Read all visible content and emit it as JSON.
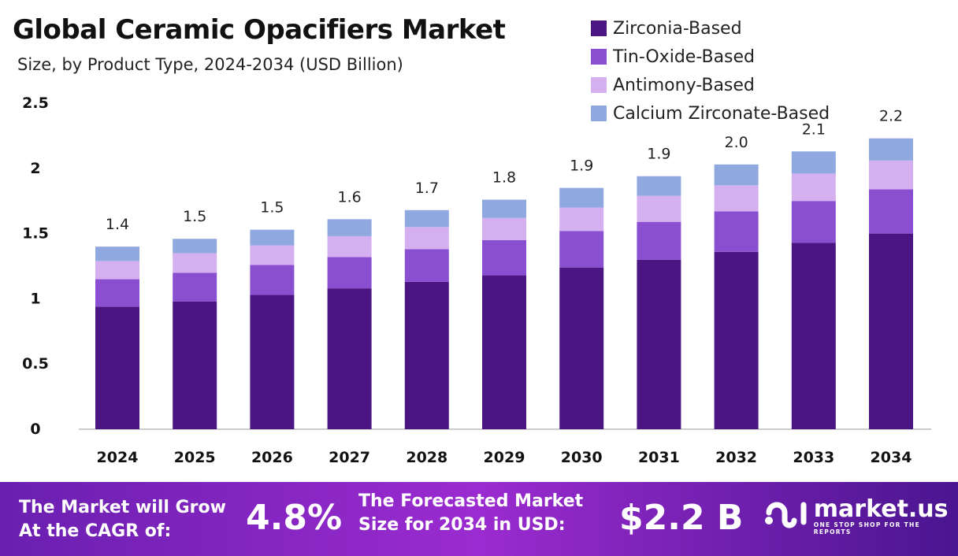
{
  "chart_data": {
    "type": "bar",
    "stacked": true,
    "title": "Global Ceramic Opacifiers Market",
    "subtitle": "Size, by Product Type, 2024-2034 (USD Billion)",
    "categories": [
      "2024",
      "2025",
      "2026",
      "2027",
      "2028",
      "2029",
      "2030",
      "2031",
      "2032",
      "2033",
      "2034"
    ],
    "series": [
      {
        "name": "Zirconia-Based",
        "color": "#4b1584",
        "values": [
          0.94,
          0.98,
          1.03,
          1.08,
          1.13,
          1.18,
          1.24,
          1.3,
          1.36,
          1.43,
          1.5
        ]
      },
      {
        "name": "Tin-Oxide-Based",
        "color": "#8a4fd0",
        "values": [
          0.21,
          0.22,
          0.23,
          0.24,
          0.25,
          0.27,
          0.28,
          0.29,
          0.31,
          0.32,
          0.34
        ]
      },
      {
        "name": "Antimony-Based",
        "color": "#d5b0f0",
        "values": [
          0.14,
          0.15,
          0.15,
          0.16,
          0.17,
          0.17,
          0.18,
          0.2,
          0.2,
          0.21,
          0.22
        ]
      },
      {
        "name": "Calcium Zirconate-Based",
        "color": "#8fa8e0",
        "values": [
          0.11,
          0.11,
          0.12,
          0.13,
          0.13,
          0.14,
          0.15,
          0.15,
          0.16,
          0.17,
          0.17
        ]
      }
    ],
    "total_labels": [
      "1.4",
      "1.5",
      "1.5",
      "1.6",
      "1.7",
      "1.8",
      "1.9",
      "1.9",
      "2.0",
      "2.1",
      "2.2"
    ],
    "yticks": [
      "0",
      "0.5",
      "1",
      "1.5",
      "2",
      "2.5"
    ],
    "ylim": [
      0,
      2.5
    ],
    "grid": false,
    "legend": "top-right"
  },
  "banner": {
    "cagr_text_1": "The Market will Grow",
    "cagr_text_2": "At the CAGR of:",
    "cagr_value": "4.8%",
    "forecast_text_1": "The Forecasted Market",
    "forecast_text_2": "Size for 2034 in USD:",
    "forecast_value": "$2.2 B",
    "logo_name": "market.us",
    "logo_tagline": "ONE STOP SHOP FOR THE REPORTS"
  }
}
